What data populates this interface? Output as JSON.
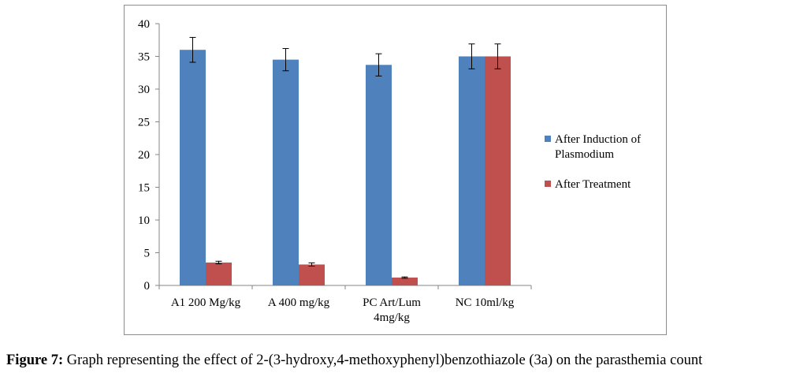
{
  "caption": {
    "label": "Figure 7:",
    "text": " Graph representing the effect of 2-(3-hydroxy,4-methoxyphenyl)benzothiazole (3a) on the parasthemia count"
  },
  "chart_data": {
    "type": "bar",
    "categories": [
      [
        "A1 200 Mg/kg"
      ],
      [
        "A 400 mg/kg"
      ],
      [
        "PC Art/Lum",
        "4mg/kg"
      ],
      [
        "NC 10ml/kg"
      ]
    ],
    "series": [
      {
        "name": "After Induction of Plasmodium",
        "legend_lines": [
          "After Induction of",
          "Plasmodium"
        ],
        "color": "#4f81bd",
        "values": [
          36.0,
          34.5,
          33.7,
          35.0
        ],
        "errors": [
          1.9,
          1.7,
          1.7,
          1.9
        ]
      },
      {
        "name": "After Treatment",
        "legend_lines": [
          "After Treatment"
        ],
        "color": "#c0504d",
        "values": [
          3.5,
          3.2,
          1.2,
          35.0
        ],
        "errors": [
          0.2,
          0.25,
          0.1,
          1.9
        ]
      }
    ],
    "ylim": [
      0,
      40
    ],
    "yticks": [
      0,
      5,
      10,
      15,
      20,
      25,
      30,
      35,
      40
    ],
    "grid": false,
    "legend_position": "right"
  }
}
